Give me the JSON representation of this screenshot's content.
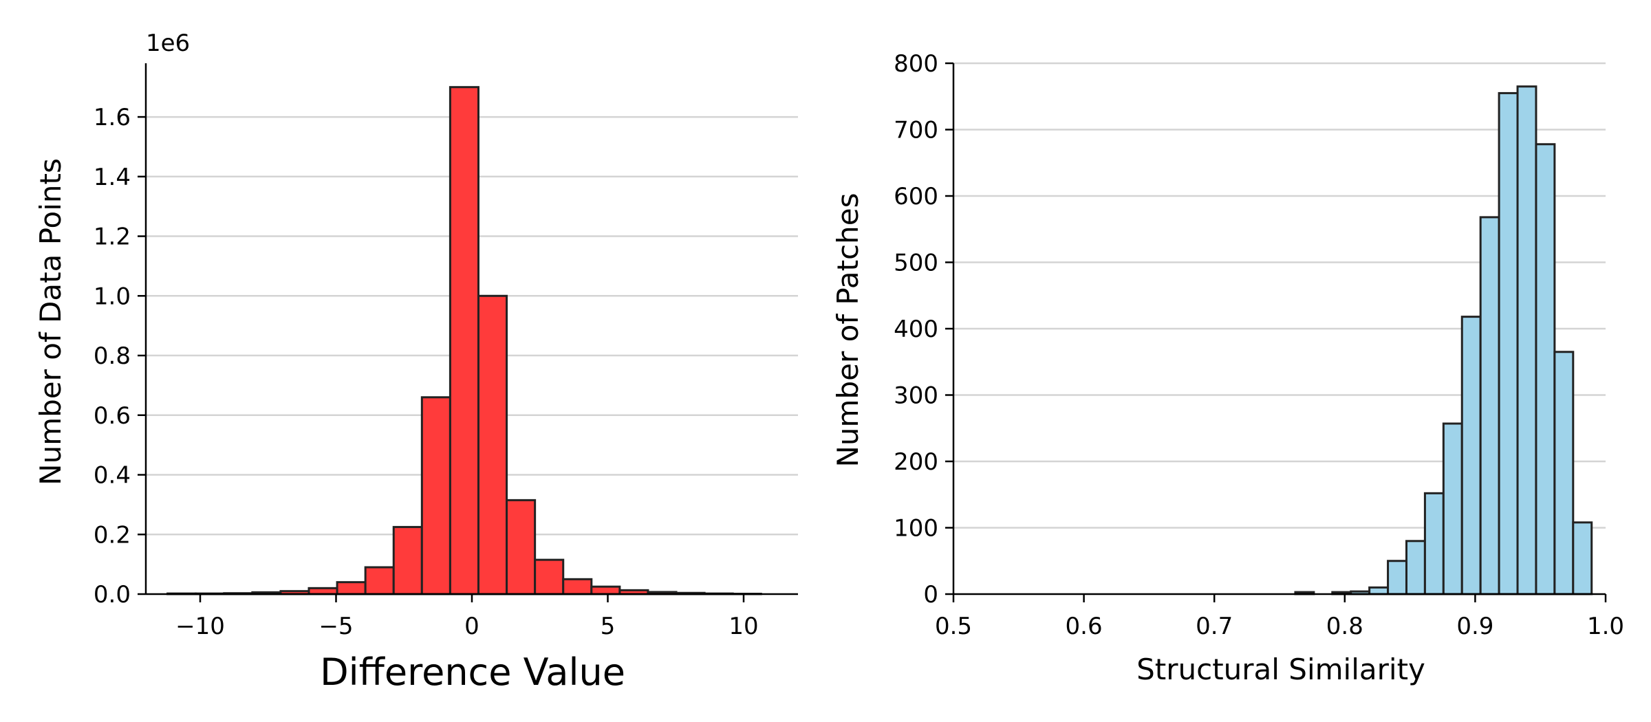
{
  "chart_data": [
    {
      "type": "bar",
      "subtype": "histogram",
      "xlabel": "Difference Value",
      "ylabel": "Number of Data Points",
      "y_offset_label": "1e6",
      "y_scale": 1000000,
      "xlim": [
        -12,
        12
      ],
      "ylim": [
        0,
        1.78
      ],
      "xticks": [
        -10,
        -5,
        0,
        5,
        10
      ],
      "xtick_labels": [
        "−10",
        "−5",
        "0",
        "5",
        "10"
      ],
      "yticks": [
        0.0,
        0.2,
        0.4,
        0.6,
        0.8,
        1.0,
        1.2,
        1.4,
        1.6
      ],
      "ytick_labels": [
        "0.0",
        "0.2",
        "0.4",
        "0.6",
        "0.8",
        "1.0",
        "1.2",
        "1.4",
        "1.6"
      ],
      "grid": "horizontal",
      "bar_color": "#ff3b3b",
      "edge_color": "#222222",
      "bins": [
        {
          "x0": -11.2,
          "x1": -10.16,
          "value": 0.002
        },
        {
          "x0": -10.16,
          "x1": -9.12,
          "value": 0.002
        },
        {
          "x0": -9.12,
          "x1": -8.08,
          "value": 0.003
        },
        {
          "x0": -8.08,
          "x1": -7.04,
          "value": 0.006
        },
        {
          "x0": -7.04,
          "x1": -6.0,
          "value": 0.01
        },
        {
          "x0": -6.0,
          "x1": -4.96,
          "value": 0.02
        },
        {
          "x0": -4.96,
          "x1": -3.92,
          "value": 0.04
        },
        {
          "x0": -3.92,
          "x1": -2.88,
          "value": 0.09
        },
        {
          "x0": -2.88,
          "x1": -1.84,
          "value": 0.225
        },
        {
          "x0": -1.84,
          "x1": -0.8,
          "value": 0.66
        },
        {
          "x0": -0.8,
          "x1": 0.24,
          "value": 1.7
        },
        {
          "x0": 0.24,
          "x1": 1.28,
          "value": 1.0
        },
        {
          "x0": 1.28,
          "x1": 2.32,
          "value": 0.315
        },
        {
          "x0": 2.32,
          "x1": 3.36,
          "value": 0.115
        },
        {
          "x0": 3.36,
          "x1": 4.4,
          "value": 0.05
        },
        {
          "x0": 4.4,
          "x1": 5.44,
          "value": 0.025
        },
        {
          "x0": 5.44,
          "x1": 6.48,
          "value": 0.013
        },
        {
          "x0": 6.48,
          "x1": 7.52,
          "value": 0.007
        },
        {
          "x0": 7.52,
          "x1": 8.56,
          "value": 0.004
        },
        {
          "x0": 8.56,
          "x1": 9.6,
          "value": 0.002
        },
        {
          "x0": 9.6,
          "x1": 10.64,
          "value": 0.001
        }
      ]
    },
    {
      "type": "bar",
      "subtype": "histogram",
      "xlabel": "Structural Similarity",
      "ylabel": "Number of Patches",
      "xlim": [
        0.5,
        1.0
      ],
      "ylim": [
        0,
        800
      ],
      "xticks": [
        0.5,
        0.6,
        0.7,
        0.8,
        0.9,
        1.0
      ],
      "xtick_labels": [
        "0.5",
        "0.6",
        "0.7",
        "0.8",
        "0.9",
        "1.0"
      ],
      "yticks": [
        0,
        100,
        200,
        300,
        400,
        500,
        600,
        700,
        800
      ],
      "ytick_labels": [
        "0",
        "100",
        "200",
        "300",
        "400",
        "500",
        "600",
        "700",
        "800"
      ],
      "grid": "horizontal",
      "bar_color": "#9fd3ea",
      "edge_color": "#222222",
      "bins": [
        {
          "x0": 0.7621,
          "x1": 0.7763,
          "value": 3
        },
        {
          "x0": 0.7763,
          "x1": 0.7905,
          "value": 0
        },
        {
          "x0": 0.7905,
          "x1": 0.8047,
          "value": 3
        },
        {
          "x0": 0.8047,
          "x1": 0.8189,
          "value": 4
        },
        {
          "x0": 0.8189,
          "x1": 0.8331,
          "value": 10
        },
        {
          "x0": 0.8331,
          "x1": 0.8473,
          "value": 50
        },
        {
          "x0": 0.8473,
          "x1": 0.8615,
          "value": 80
        },
        {
          "x0": 0.8615,
          "x1": 0.8757,
          "value": 152
        },
        {
          "x0": 0.8757,
          "x1": 0.8899,
          "value": 257
        },
        {
          "x0": 0.8899,
          "x1": 0.9041,
          "value": 418
        },
        {
          "x0": 0.9041,
          "x1": 0.9183,
          "value": 568
        },
        {
          "x0": 0.9183,
          "x1": 0.9325,
          "value": 755
        },
        {
          "x0": 0.9325,
          "x1": 0.9467,
          "value": 765
        },
        {
          "x0": 0.9467,
          "x1": 0.9609,
          "value": 678
        },
        {
          "x0": 0.9609,
          "x1": 0.9751,
          "value": 365
        },
        {
          "x0": 0.9751,
          "x1": 0.9893,
          "value": 108
        }
      ]
    }
  ]
}
